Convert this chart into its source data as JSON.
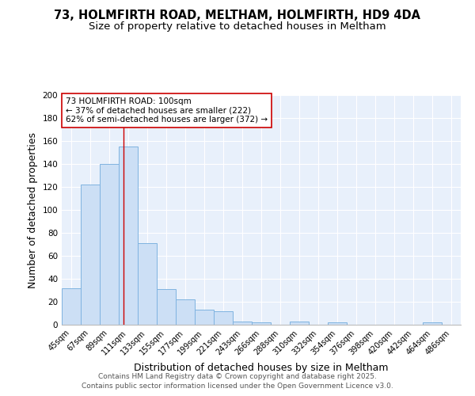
{
  "title": "73, HOLMFIRTH ROAD, MELTHAM, HOLMFIRTH, HD9 4DA",
  "subtitle": "Size of property relative to detached houses in Meltham",
  "categories": [
    "45sqm",
    "67sqm",
    "89sqm",
    "111sqm",
    "133sqm",
    "155sqm",
    "177sqm",
    "199sqm",
    "221sqm",
    "243sqm",
    "266sqm",
    "288sqm",
    "310sqm",
    "332sqm",
    "354sqm",
    "376sqm",
    "398sqm",
    "420sqm",
    "442sqm",
    "464sqm",
    "486sqm"
  ],
  "values": [
    32,
    122,
    140,
    155,
    71,
    31,
    22,
    13,
    12,
    3,
    2,
    0,
    3,
    0,
    2,
    0,
    0,
    0,
    0,
    2,
    0
  ],
  "bar_color": "#ccdff5",
  "bar_edge_color": "#7fb3e0",
  "background_color": "#e8f0fb",
  "grid_color": "#ffffff",
  "ylabel": "Number of detached properties",
  "xlabel": "Distribution of detached houses by size in Meltham",
  "ylim": [
    0,
    200
  ],
  "yticks": [
    0,
    20,
    40,
    60,
    80,
    100,
    120,
    140,
    160,
    180,
    200
  ],
  "red_line_x": 2.75,
  "annotation_text": "73 HOLMFIRTH ROAD: 100sqm\n← 37% of detached houses are smaller (222)\n62% of semi-detached houses are larger (372) →",
  "annotation_box_facecolor": "#ffffff",
  "annotation_box_edgecolor": "#cc0000",
  "footer_line1": "Contains HM Land Registry data © Crown copyright and database right 2025.",
  "footer_line2": "Contains public sector information licensed under the Open Government Licence v3.0.",
  "title_fontsize": 10.5,
  "subtitle_fontsize": 9.5,
  "tick_fontsize": 7,
  "label_fontsize": 9,
  "annotation_fontsize": 7.5,
  "footer_fontsize": 6.5
}
